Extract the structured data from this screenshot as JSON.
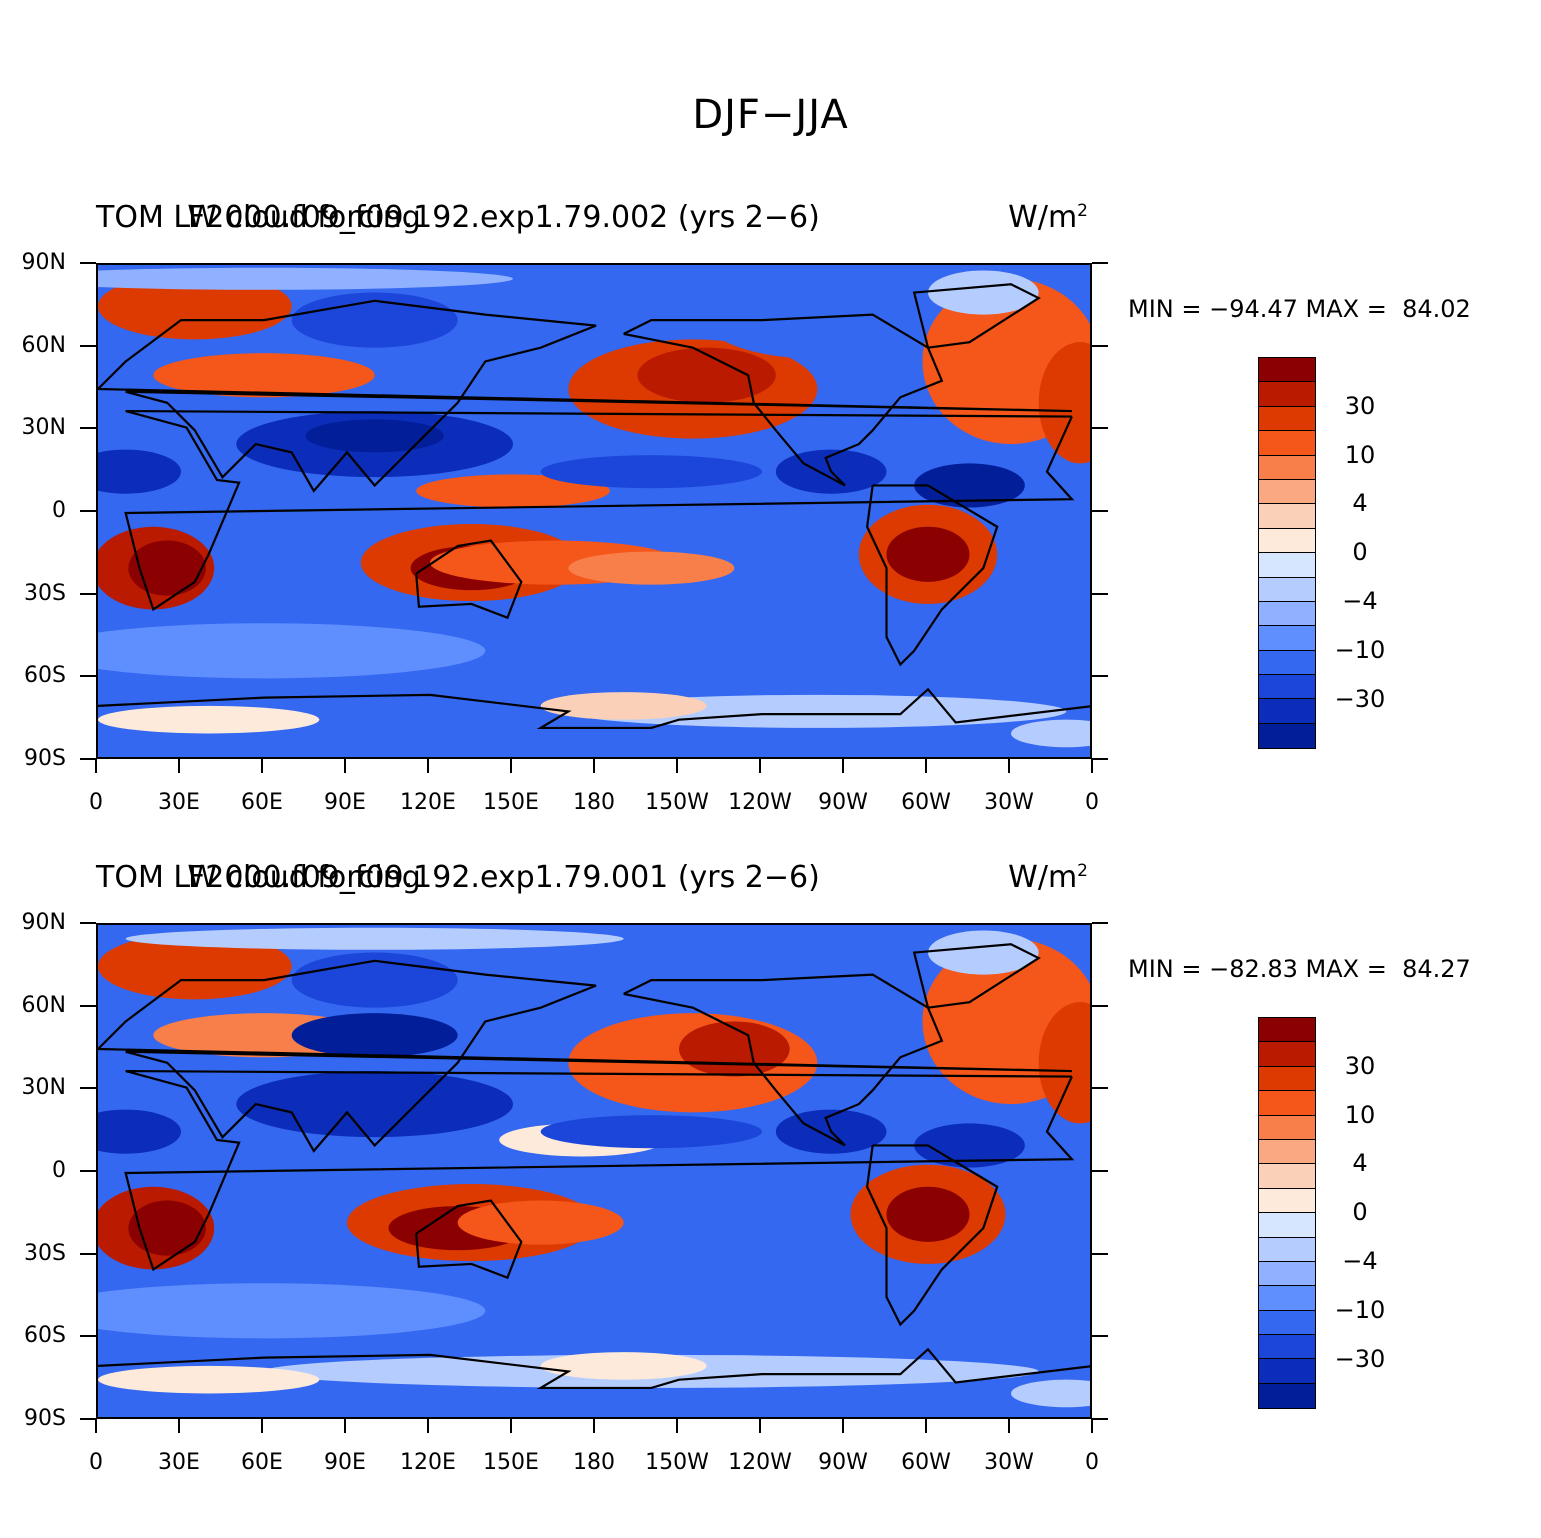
{
  "figure": {
    "title": "DJF−JJA"
  },
  "colors": {
    "colorbar": [
      "#8b0000",
      "#b91a00",
      "#dc3a00",
      "#f5561a",
      "#f87f4a",
      "#f9a882",
      "#fbd0b8",
      "#fdeadb",
      "#d6e6ff",
      "#b5cdfe",
      "#8fb1ff",
      "#5f8eff",
      "#3568f0",
      "#1c46d9",
      "#0b2db9",
      "#031e99"
    ],
    "land_outline": "#000000"
  },
  "map_data": {
    "projection": "cylindrical equidistant",
    "lon_labels": [
      "0",
      "30E",
      "60E",
      "90E",
      "120E",
      "150E",
      "180",
      "150W",
      "120W",
      "90W",
      "60W",
      "30W",
      "0"
    ],
    "lat_labels": [
      "90N",
      "60N",
      "30N",
      "0",
      "30S",
      "60S",
      "90S"
    ],
    "colorbar_labels": [
      "30",
      "10",
      "4",
      "0",
      "−4",
      "−10",
      "−30"
    ]
  },
  "panels": [
    {
      "label": "TOM LW cloud forcing",
      "case": "F2000.f09_f09.192.exp1.79.002 (yrs 2−6)",
      "units": "W/m",
      "units_sup": "2",
      "stats": "MIN = −94.47 MAX =  84.02"
    },
    {
      "label": "TOM LW cloud forcing",
      "case": "F2000.f09_f09.192.exp1.79.001 (yrs 2−6)",
      "units": "W/m",
      "units_sup": "2",
      "stats": "MIN = −82.83 MAX =  84.27"
    }
  ]
}
